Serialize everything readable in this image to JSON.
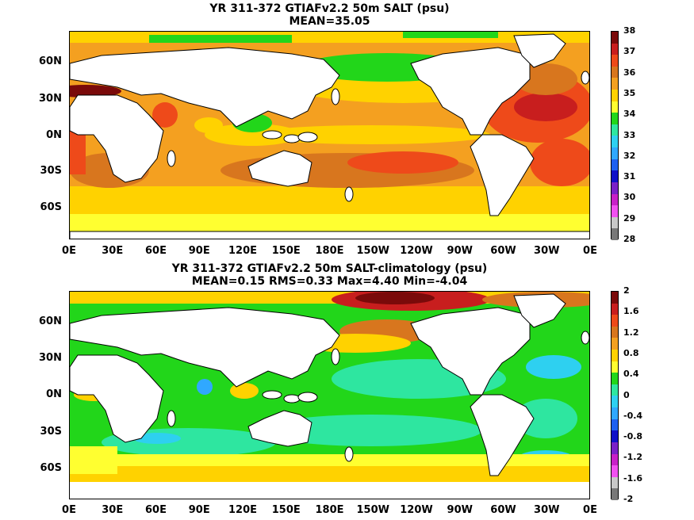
{
  "panel_top": {
    "title": "YR 311-372 GTIAFv2.2 50m SALT (psu)",
    "subtitle": "MEAN=35.05",
    "colorbar_labels": [
      "38",
      "37",
      "36",
      "35",
      "34",
      "33",
      "32",
      "31",
      "30",
      "29",
      "28"
    ],
    "colorbar_colors": [
      "#7a0a0a",
      "#c81e1e",
      "#ee4a1a",
      "#d8761e",
      "#f4a020",
      "#ffd200",
      "#ffff30",
      "#22d61a",
      "#2ee6a0",
      "#2ed0f0",
      "#30a8ff",
      "#1e60f0",
      "#1010c8",
      "#7a20c8",
      "#c820c8",
      "#f050f0",
      "#c8c8c8",
      "#787878"
    ]
  },
  "panel_bottom": {
    "title": "YR 311-372 GTIAFv2.2 50m SALT-climatology (psu)",
    "subtitle": "MEAN=0.15   RMS=0.33   Max=4.40   Min=-4.04",
    "colorbar_labels": [
      "2",
      "1.6",
      "1.2",
      "0.8",
      "0.4",
      "0",
      "-0.4",
      "-0.8",
      "-1.2",
      "-1.6",
      "-2"
    ],
    "colorbar_colors": [
      "#7a0a0a",
      "#c81e1e",
      "#ee4a1a",
      "#d8761e",
      "#f4a020",
      "#ffd200",
      "#ffff30",
      "#22d61a",
      "#2ee6a0",
      "#2ed0f0",
      "#30a8ff",
      "#1e60f0",
      "#1010c8",
      "#7a20c8",
      "#c820c8",
      "#f050f0",
      "#c8c8c8",
      "#787878"
    ]
  },
  "lat_labels": [
    "60N",
    "30N",
    "0N",
    "30S",
    "60S"
  ],
  "lon_labels": [
    "0E",
    "30E",
    "60E",
    "90E",
    "120E",
    "150E",
    "180E",
    "150W",
    "120W",
    "90W",
    "60W",
    "30W",
    "0E"
  ]
}
